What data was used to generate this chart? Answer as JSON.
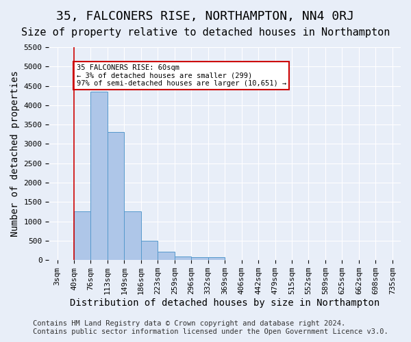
{
  "title": "35, FALCONERS RISE, NORTHAMPTON, NN4 0RJ",
  "subtitle": "Size of property relative to detached houses in Northampton",
  "xlabel": "Distribution of detached houses by size in Northampton",
  "ylabel": "Number of detached properties",
  "footer_line1": "Contains HM Land Registry data © Crown copyright and database right 2024.",
  "footer_line2": "Contains public sector information licensed under the Open Government Licence v3.0.",
  "bin_labels": [
    "3sqm",
    "40sqm",
    "76sqm",
    "113sqm",
    "149sqm",
    "186sqm",
    "223sqm",
    "259sqm",
    "296sqm",
    "332sqm",
    "369sqm",
    "406sqm",
    "442sqm",
    "479sqm",
    "515sqm",
    "552sqm",
    "589sqm",
    "625sqm",
    "662sqm",
    "698sqm",
    "735sqm"
  ],
  "bar_heights": [
    0,
    1250,
    4350,
    3300,
    1250,
    490,
    215,
    100,
    75,
    75,
    0,
    0,
    0,
    0,
    0,
    0,
    0,
    0,
    0,
    0
  ],
  "bar_color": "#aec6e8",
  "bar_edge_color": "#5599cc",
  "vline_x": 1,
  "vline_color": "#cc0000",
  "annotation_text": "35 FALCONERS RISE: 60sqm\n← 3% of detached houses are smaller (299)\n97% of semi-detached houses are larger (10,651) →",
  "annotation_box_color": "white",
  "annotation_box_edge": "#cc0000",
  "ylim": [
    0,
    5500
  ],
  "yticks": [
    0,
    500,
    1000,
    1500,
    2000,
    2500,
    3000,
    3500,
    4000,
    4500,
    5000,
    5500
  ],
  "bg_color": "#e8eef8",
  "plot_bg_color": "#e8eef8",
  "title_fontsize": 13,
  "subtitle_fontsize": 11,
  "axis_label_fontsize": 10,
  "tick_fontsize": 8,
  "footer_fontsize": 7.5
}
